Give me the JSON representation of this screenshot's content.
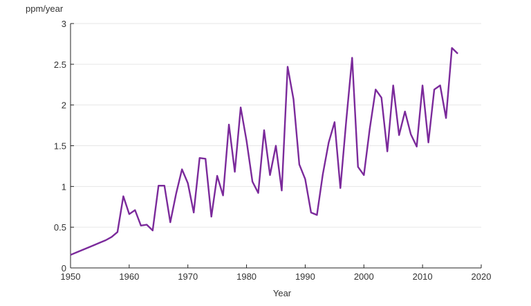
{
  "chart_data": {
    "type": "line",
    "title": "",
    "xlabel": "Year",
    "ylabel": "ppm/year",
    "xlim": [
      1950,
      2020
    ],
    "ylim": [
      0,
      3
    ],
    "xticks": [
      "1950",
      "1960",
      "1970",
      "1980",
      "1990",
      "2000",
      "2010",
      "2020"
    ],
    "yticks": [
      "0",
      "0.5",
      "1",
      "1.5",
      "2",
      "2.5",
      "3"
    ],
    "grid": "horizontal",
    "line_color": "#7b2a9b",
    "series": [
      {
        "x": [
          1950,
          1951,
          1952,
          1953,
          1954,
          1955,
          1956,
          1957,
          1958,
          1959,
          1960,
          1961,
          1962,
          1963,
          1964,
          1965,
          1966,
          1967,
          1968,
          1969,
          1970,
          1971,
          1972,
          1973,
          1974,
          1975,
          1976,
          1977,
          1978,
          1979,
          1980,
          1981,
          1982,
          1983,
          1984,
          1985,
          1986,
          1987,
          1988,
          1989,
          1990,
          1991,
          1992,
          1993,
          1994,
          1995,
          1996,
          1997,
          1998,
          1999,
          2000,
          2001,
          2002,
          2003,
          2004,
          2005,
          2006,
          2007,
          2008,
          2009,
          2010,
          2011,
          2012,
          2013,
          2014,
          2015,
          2016
        ],
        "values": [
          0.16,
          0.19,
          0.22,
          0.25,
          0.28,
          0.31,
          0.34,
          0.38,
          0.44,
          0.88,
          0.66,
          0.71,
          0.52,
          0.53,
          0.46,
          1.01,
          1.01,
          0.56,
          0.91,
          1.21,
          1.04,
          0.68,
          1.35,
          1.34,
          0.63,
          1.13,
          0.89,
          1.76,
          1.18,
          1.97,
          1.56,
          1.06,
          0.92,
          1.69,
          1.14,
          1.5,
          0.95,
          2.47,
          2.07,
          1.27,
          1.09,
          0.68,
          0.65,
          1.15,
          1.54,
          1.79,
          0.98,
          1.81,
          2.58,
          1.24,
          1.14,
          1.71,
          2.19,
          2.09,
          1.43,
          2.24,
          1.63,
          1.92,
          1.64,
          1.49,
          2.24,
          1.54,
          2.19,
          2.24,
          1.84,
          2.7,
          2.63
        ]
      }
    ]
  }
}
